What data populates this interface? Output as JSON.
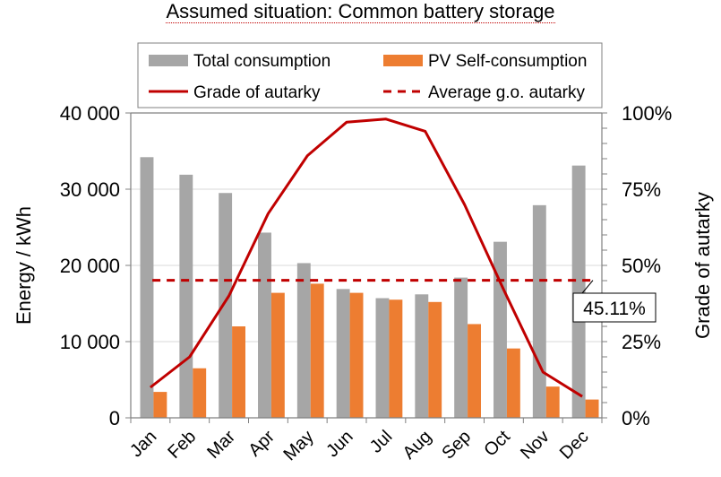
{
  "chart_data": {
    "type": "bar",
    "title": "Assumed situation: Common battery storage",
    "categories": [
      "Jan",
      "Feb",
      "Mar",
      "Apr",
      "May",
      "Jun",
      "Jul",
      "Aug",
      "Sep",
      "Oct",
      "Nov",
      "Dec"
    ],
    "series": [
      {
        "name": "Total consumption",
        "type": "bar",
        "axis": "left",
        "color": "#a6a6a6",
        "values": [
          34200,
          31900,
          29500,
          24300,
          20300,
          16900,
          15700,
          16200,
          18400,
          23100,
          27900,
          33100
        ]
      },
      {
        "name": "PV Self-consumption",
        "type": "bar",
        "axis": "left",
        "color": "#ed7d31",
        "values": [
          3400,
          6500,
          12000,
          16400,
          17600,
          16400,
          15500,
          15200,
          12300,
          9100,
          4100,
          2400
        ]
      },
      {
        "name": "Grade of autarky",
        "type": "line",
        "axis": "right",
        "color": "#c00000",
        "values": [
          10,
          20,
          40,
          67,
          86,
          97,
          98,
          94,
          70,
          42,
          15,
          7
        ]
      },
      {
        "name": "Average g.o. autarky",
        "type": "line",
        "style": "dashed",
        "axis": "right",
        "color": "#c00000",
        "value": 45.11
      }
    ],
    "annotation": "45.11%",
    "ylabel": "Energy / kWh",
    "ylim": [
      0,
      40000
    ],
    "yticks": [
      "0",
      "10 000",
      "20 000",
      "30 000",
      "40 000"
    ],
    "y2label": "Grade of autarky",
    "y2lim": [
      0,
      100
    ],
    "y2ticks": [
      "0%",
      "25%",
      "50%",
      "75%",
      "100%"
    ],
    "grid": true,
    "legend": "top"
  }
}
